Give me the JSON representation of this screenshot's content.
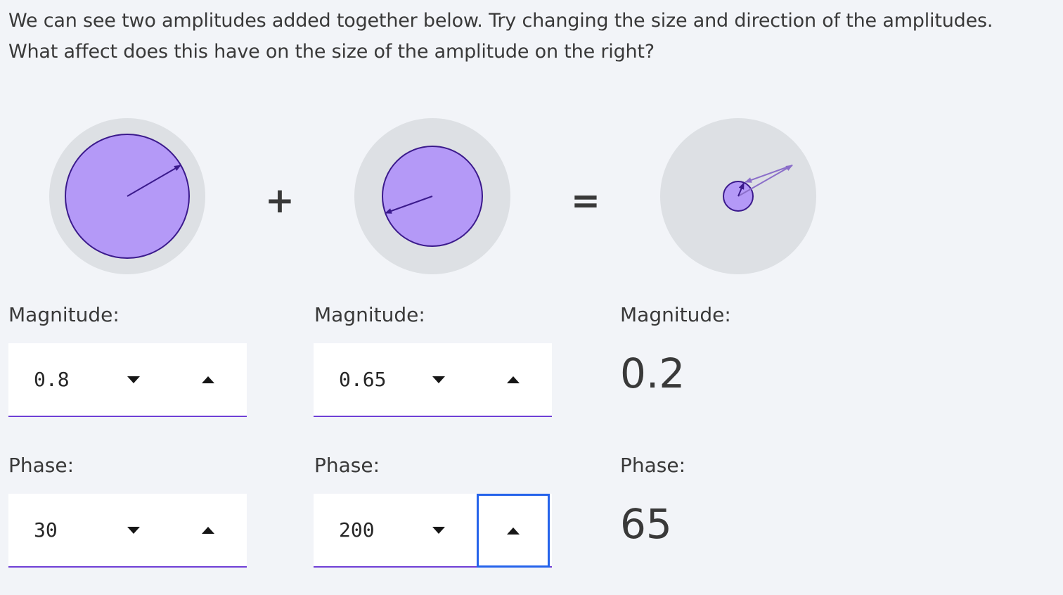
{
  "intro": {
    "line1": "We can see two amplitudes added together below. Try changing the size and direction of the amplitudes.",
    "line2": "What affect does this have on the size of the amplitude on the right?"
  },
  "operators": {
    "plus": "+",
    "equals": "="
  },
  "amplitude_a": {
    "magnitude_label": "Magnitude:",
    "magnitude": "0.8",
    "phase_label": "Phase:",
    "phase": "30"
  },
  "amplitude_b": {
    "magnitude_label": "Magnitude:",
    "magnitude": "0.65",
    "phase_label": "Phase:",
    "phase": "200"
  },
  "result": {
    "magnitude_label": "Magnitude:",
    "magnitude": "0.2",
    "phase_label": "Phase:",
    "phase": "65"
  },
  "icons": {
    "decrement": "caret-down-icon",
    "increment": "caret-up-icon"
  },
  "colors": {
    "amplitude_fill": "#b499f7",
    "amplitude_stroke": "#3b1a8c",
    "disc_background": "#dde0e4",
    "accent_underline": "#6f3fd6",
    "focus_ring": "#2563eb"
  }
}
